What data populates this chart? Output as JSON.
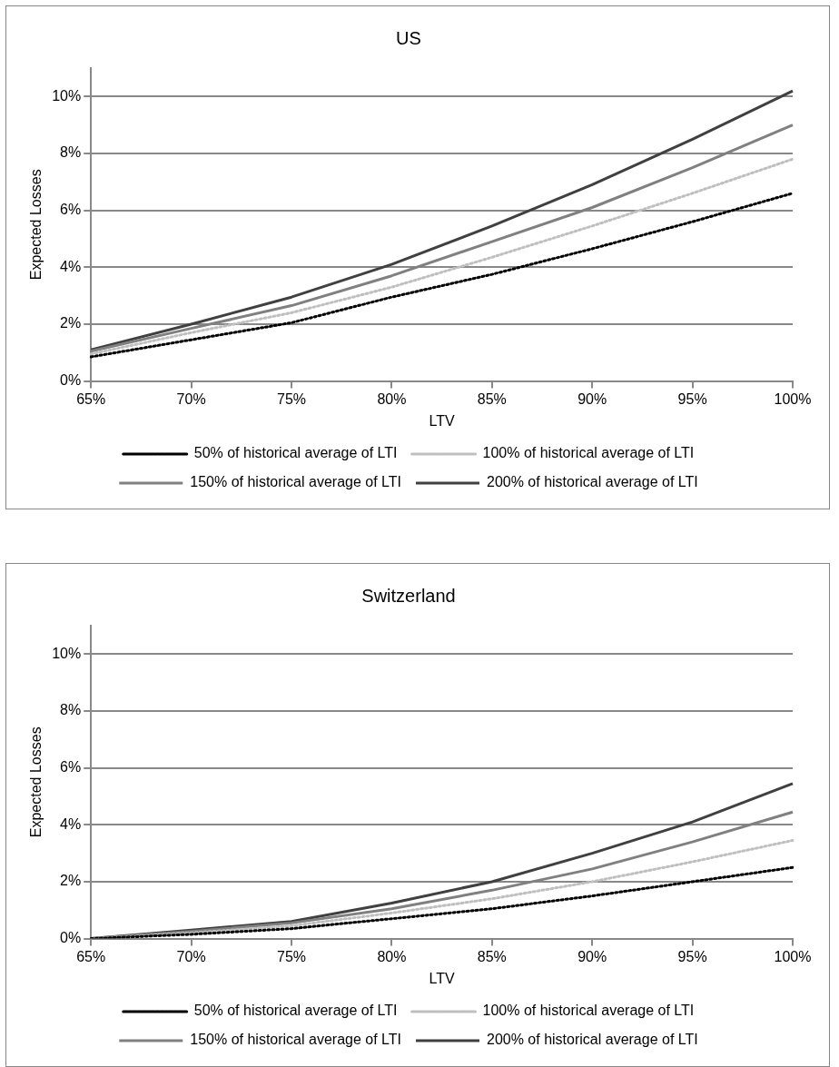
{
  "chart_data": [
    {
      "type": "line",
      "title": "US",
      "xlabel": "LTV",
      "ylabel": "Expected Losses",
      "categories": [
        "65%",
        "70%",
        "75%",
        "80%",
        "85%",
        "90%",
        "95%",
        "100%"
      ],
      "ylim": [
        0,
        11
      ],
      "yticks": [
        {
          "value": 0,
          "label": "0%"
        },
        {
          "value": 2,
          "label": "2%"
        },
        {
          "value": 4,
          "label": "4%"
        },
        {
          "value": 6,
          "label": "6%"
        },
        {
          "value": 8,
          "label": "8%"
        },
        {
          "value": 10,
          "label": "10%"
        }
      ],
      "grid": "y",
      "legend": "bottom",
      "marker": "none",
      "series": [
        {
          "name": "50% of historical average of LTI",
          "color": "#000000",
          "line_style": "dotted",
          "values": [
            0.85,
            1.45,
            2.05,
            2.95,
            3.75,
            4.65,
            5.6,
            6.6
          ]
        },
        {
          "name": "100% of historical average of LTI",
          "color": "#bfbfbf",
          "line_style": "dotted",
          "values": [
            0.95,
            1.7,
            2.4,
            3.3,
            4.35,
            5.45,
            6.6,
            7.8
          ]
        },
        {
          "name": "150% of historical average of LTI",
          "color": "#808080",
          "line_style": "solid",
          "values": [
            1.05,
            1.85,
            2.65,
            3.7,
            4.9,
            6.1,
            7.5,
            9.0
          ]
        },
        {
          "name": "200% of historical average of LTI",
          "color": "#404040",
          "line_style": "solid",
          "values": [
            1.1,
            2.0,
            2.95,
            4.1,
            5.45,
            6.9,
            8.5,
            10.2
          ]
        }
      ]
    },
    {
      "type": "line",
      "title": "Switzerland",
      "xlabel": "LTV",
      "ylabel": "Expected Losses",
      "categories": [
        "65%",
        "70%",
        "75%",
        "80%",
        "85%",
        "90%",
        "95%",
        "100%"
      ],
      "ylim": [
        0,
        11
      ],
      "yticks": [
        {
          "value": 0,
          "label": "0%"
        },
        {
          "value": 2,
          "label": "2%"
        },
        {
          "value": 4,
          "label": "4%"
        },
        {
          "value": 6,
          "label": "6%"
        },
        {
          "value": 8,
          "label": "8%"
        },
        {
          "value": 10,
          "label": "10%"
        }
      ],
      "grid": "y",
      "legend": "bottom",
      "marker": "none",
      "series": [
        {
          "name": "50% of historical average of LTI",
          "color": "#000000",
          "line_style": "dotted",
          "values": [
            0,
            0.15,
            0.35,
            0.7,
            1.05,
            1.5,
            2.0,
            2.5
          ]
        },
        {
          "name": "100% of historical average of LTI",
          "color": "#bfbfbf",
          "line_style": "dotted",
          "values": [
            0,
            0.2,
            0.45,
            0.9,
            1.4,
            2.0,
            2.7,
            3.45
          ]
        },
        {
          "name": "150% of historical average of LTI",
          "color": "#808080",
          "line_style": "solid",
          "values": [
            0,
            0.25,
            0.55,
            1.05,
            1.7,
            2.45,
            3.4,
            4.45
          ]
        },
        {
          "name": "200% of historical average of LTI",
          "color": "#404040",
          "line_style": "solid",
          "values": [
            0,
            0.3,
            0.6,
            1.25,
            2.0,
            3.0,
            4.1,
            5.45
          ]
        }
      ]
    }
  ]
}
